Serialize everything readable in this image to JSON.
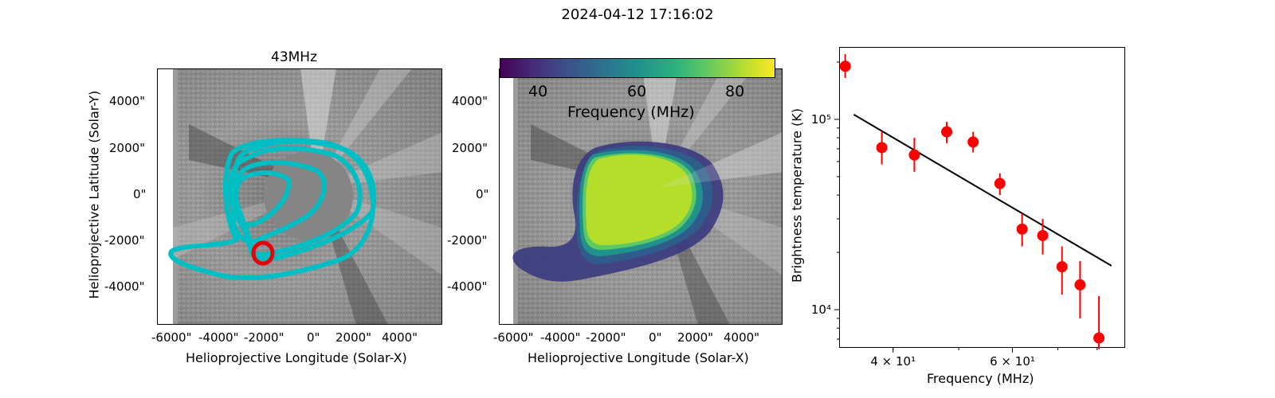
{
  "figure": {
    "title": "2024-04-12 17:16:02"
  },
  "panel_left": {
    "title": "43MHz",
    "xlabel": "Helioprojective Longitude (Solar-X)",
    "ylabel": "Helioprojective Latitude (Solar-Y)",
    "xticks": [
      "-6000\"",
      "-4000\"",
      "-2000\"",
      "0\"",
      "2000\"",
      "4000\""
    ],
    "yticks": [
      "4000\"",
      "2000\"",
      "0\"",
      "-2000\"",
      "-4000\""
    ],
    "contour_color": "#00bfc4",
    "marker_color": "#e8000b"
  },
  "panel_middle": {
    "xlabel": "Helioprojective Longitude (Solar-X)",
    "xticks": [
      "-6000\"",
      "-4000\"",
      "-2000\"",
      "0\"",
      "2000\"",
      "4000\""
    ],
    "yticks": [
      "4000\"",
      "2000\"",
      "0\"",
      "-2000\"",
      "-4000\""
    ],
    "colorbar": {
      "label": "Frequency (MHz)",
      "ticks": [
        "40",
        "60",
        "80"
      ],
      "colormap": "viridis"
    }
  },
  "chart_data": {
    "type": "scatter",
    "xlabel": "Frequency (MHz)",
    "ylabel": "Brightness temperature (K)",
    "xscale": "log",
    "yscale": "log",
    "xlim": [
      33.3,
      88
    ],
    "ylim": [
      6300,
      240000
    ],
    "xtick_labels": [
      {
        "value": 40,
        "label": "4 × 10¹"
      },
      {
        "value": 60,
        "label": "6 × 10¹"
      }
    ],
    "ytick_labels": [
      {
        "value": 10000,
        "label": "10⁴"
      },
      {
        "value": 100000,
        "label": "10⁵"
      }
    ],
    "points": [
      {
        "x": 34.0,
        "y": 190000,
        "ylo": 165000,
        "yhi": 220000
      },
      {
        "x": 38.5,
        "y": 71000,
        "ylo": 58000,
        "yhi": 86000
      },
      {
        "x": 43.0,
        "y": 65000,
        "ylo": 53000,
        "yhi": 80000
      },
      {
        "x": 48.0,
        "y": 86000,
        "ylo": 75000,
        "yhi": 97000
      },
      {
        "x": 52.5,
        "y": 76000,
        "ylo": 67000,
        "yhi": 86000
      },
      {
        "x": 57.5,
        "y": 46000,
        "ylo": 40000,
        "yhi": 52000
      },
      {
        "x": 62.0,
        "y": 26500,
        "ylo": 21500,
        "yhi": 32000
      },
      {
        "x": 66.5,
        "y": 24500,
        "ylo": 19500,
        "yhi": 30000
      },
      {
        "x": 71.0,
        "y": 16800,
        "ylo": 12000,
        "yhi": 21500
      },
      {
        "x": 75.5,
        "y": 13500,
        "ylo": 9000,
        "yhi": 18000
      },
      {
        "x": 80.5,
        "y": 7100,
        "ylo": 6200,
        "yhi": 11800
      }
    ],
    "fit_line": {
      "x": [
        35.0,
        84.0
      ],
      "y": [
        106000,
        17000
      ]
    },
    "marker_color": "#ff0000",
    "line_color": "#000000"
  }
}
